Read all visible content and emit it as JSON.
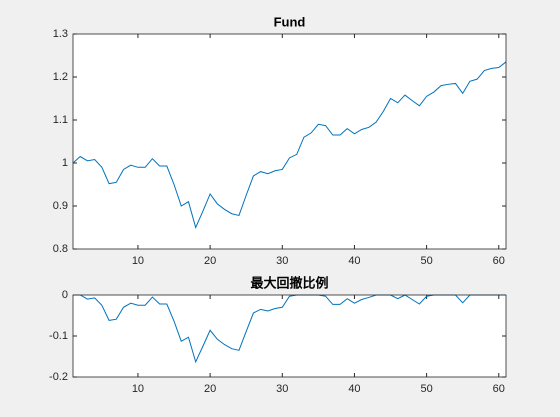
{
  "chart_data": [
    {
      "type": "line",
      "title": "Fund",
      "x": [
        1,
        2,
        3,
        4,
        5,
        6,
        7,
        8,
        9,
        10,
        11,
        12,
        13,
        14,
        15,
        16,
        17,
        18,
        19,
        20,
        21,
        22,
        23,
        24,
        25,
        26,
        27,
        28,
        29,
        30,
        31,
        32,
        33,
        34,
        35,
        36,
        37,
        38,
        39,
        40,
        41,
        42,
        43,
        44,
        45,
        46,
        47,
        48,
        49,
        50,
        51,
        52,
        53,
        54,
        55,
        56,
        57,
        58,
        59,
        60,
        61
      ],
      "series": [
        {
          "color": "#0072bd",
          "values": [
            1.0,
            1.015,
            1.005,
            1.008,
            0.99,
            0.952,
            0.955,
            0.985,
            0.995,
            0.99,
            0.99,
            1.01,
            0.993,
            0.993,
            0.95,
            0.9,
            0.91,
            0.85,
            0.888,
            0.928,
            0.905,
            0.892,
            0.882,
            0.878,
            0.925,
            0.97,
            0.98,
            0.975,
            0.982,
            0.985,
            1.012,
            1.02,
            1.06,
            1.07,
            1.09,
            1.087,
            1.065,
            1.065,
            1.08,
            1.068,
            1.078,
            1.083,
            1.095,
            1.12,
            1.15,
            1.14,
            1.158,
            1.145,
            1.133,
            1.155,
            1.165,
            1.18,
            1.183,
            1.185,
            1.162,
            1.19,
            1.195,
            1.215,
            1.22,
            1.222,
            1.235
          ]
        }
      ],
      "xlim": [
        1,
        61
      ],
      "xticks": [
        10,
        20,
        30,
        40,
        50,
        60
      ],
      "ylim": [
        0.8,
        1.3
      ],
      "yticks": [
        0.8,
        0.9,
        1,
        1.1,
        1.2,
        1.3
      ]
    },
    {
      "type": "line",
      "title": "最大回撤比例",
      "x": [
        1,
        2,
        3,
        4,
        5,
        6,
        7,
        8,
        9,
        10,
        11,
        12,
        13,
        14,
        15,
        16,
        17,
        18,
        19,
        20,
        21,
        22,
        23,
        24,
        25,
        26,
        27,
        28,
        29,
        30,
        31,
        32,
        33,
        34,
        35,
        36,
        37,
        38,
        39,
        40,
        41,
        42,
        43,
        44,
        45,
        46,
        47,
        48,
        49,
        50,
        51,
        52,
        53,
        54,
        55,
        56,
        57,
        58,
        59,
        60,
        61
      ],
      "series": [
        {
          "color": "#0072bd",
          "values": [
            0,
            0,
            -0.01,
            -0.007,
            -0.025,
            -0.062,
            -0.059,
            -0.03,
            -0.02,
            -0.025,
            -0.025,
            -0.005,
            -0.022,
            -0.022,
            -0.064,
            -0.113,
            -0.103,
            -0.163,
            -0.125,
            -0.086,
            -0.108,
            -0.121,
            -0.131,
            -0.135,
            -0.089,
            -0.044,
            -0.035,
            -0.039,
            -0.033,
            -0.03,
            -0.003,
            0,
            0,
            0,
            0,
            -0.003,
            -0.023,
            -0.023,
            -0.009,
            -0.02,
            -0.011,
            -0.006,
            0,
            0,
            0,
            -0.009,
            0,
            -0.011,
            -0.022,
            -0.003,
            0,
            0,
            0,
            0,
            -0.019,
            0,
            0,
            0,
            0,
            0,
            0
          ]
        }
      ],
      "xlim": [
        1,
        61
      ],
      "xticks": [
        10,
        20,
        30,
        40,
        50,
        60
      ],
      "ylim": [
        -0.2,
        0
      ],
      "yticks": [
        -0.2,
        -0.1,
        0
      ]
    }
  ]
}
